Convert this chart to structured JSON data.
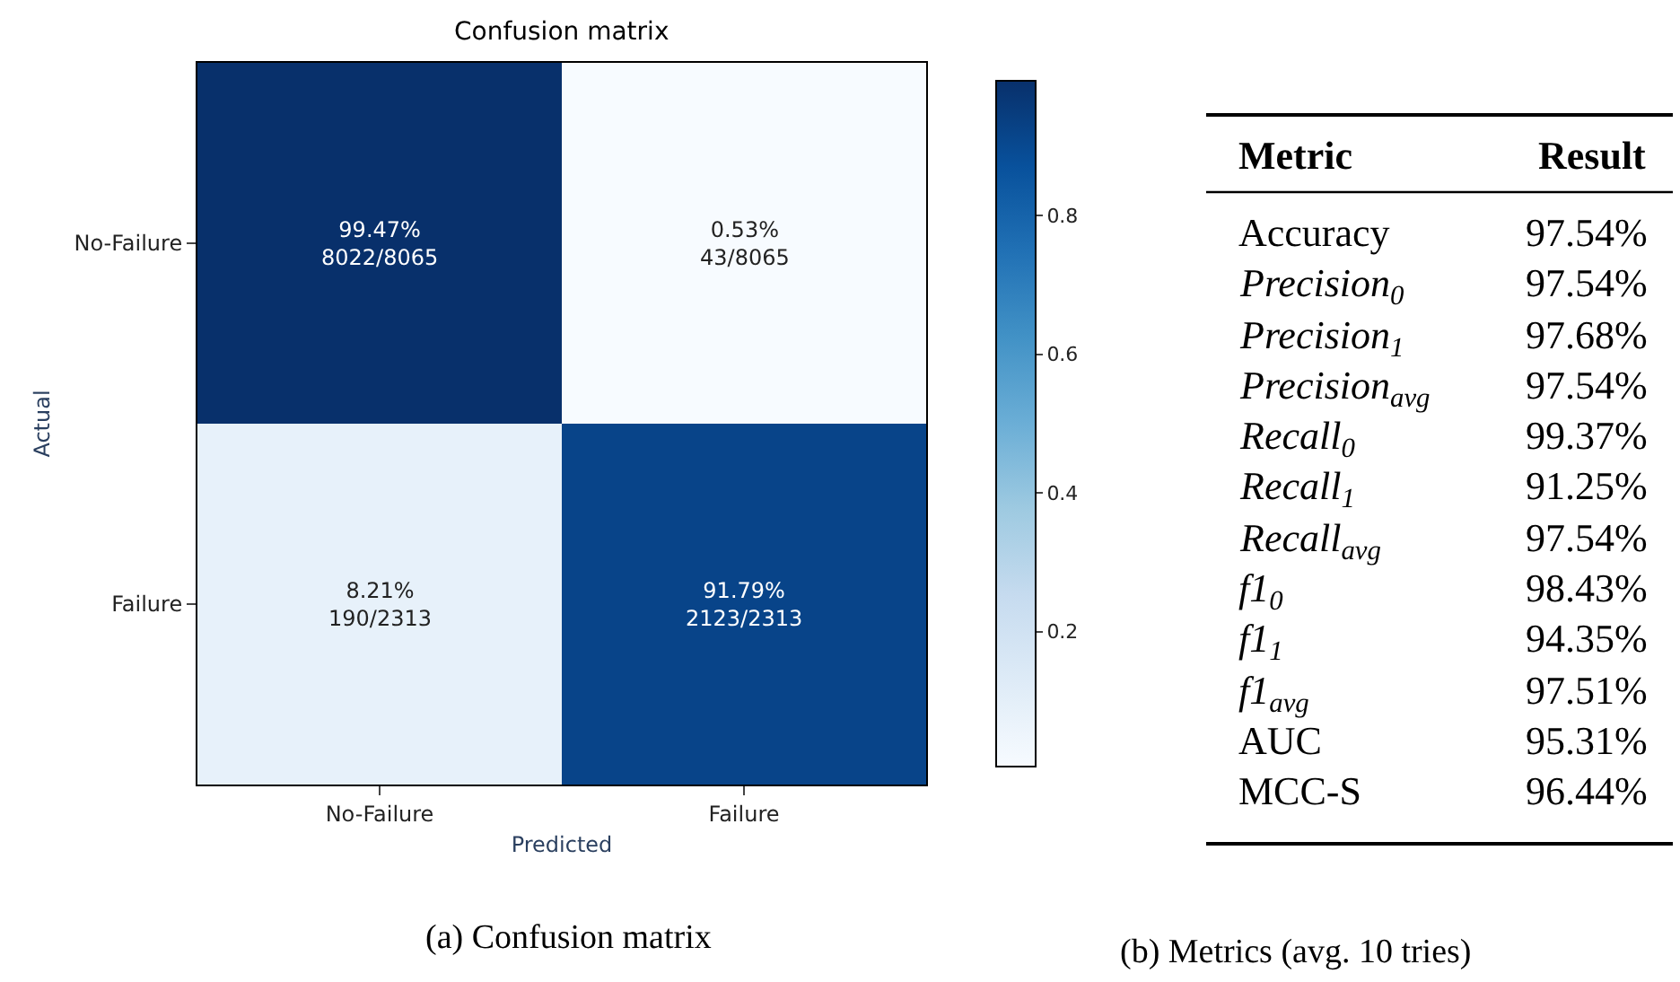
{
  "chart_data": [
    {
      "type": "heatmap",
      "title": "Confusion matrix",
      "xlabel": "Predicted",
      "ylabel": "Actual",
      "categories": [
        "No-Failure",
        "Failure"
      ],
      "y_categories": [
        "No-Failure",
        "Failure"
      ],
      "cells": [
        [
          0.9947,
          0.0053
        ],
        [
          0.0821,
          0.9179
        ]
      ],
      "cell_labels": [
        [
          "99.47%\n8022/8065",
          "0.53%\n43/8065"
        ],
        [
          "8.21%\n190/2313",
          "91.79%\n2123/2313"
        ]
      ],
      "clim": [
        0.0053,
        0.9947
      ],
      "cticks": [
        0.2,
        0.4,
        0.6,
        0.8
      ],
      "annotations": [
        "(a) Confusion matrix"
      ]
    },
    {
      "type": "other",
      "categories": [
        "Accuracy",
        "Precision$_{0}$",
        "Precision$_{1}$",
        "Precision$_{avg}$",
        "Recall$_{0}$",
        "Recall$_{1}$",
        "Recall$_{avg}$",
        "f1$_{0}$",
        "f1$_{1}$",
        "f1$_{avg}$",
        "AUC",
        "MCC-S"
      ],
      "value_labels": [
        "97.54%",
        "97.54%",
        "97.68%",
        "97.54%",
        "99.37%",
        "91.25%",
        "97.54%",
        "98.43%",
        "94.35%",
        "97.51%",
        "95.31%",
        "96.44%"
      ],
      "annotations": [
        "Metric",
        "Result",
        "(b) Metrics (avg. 10 tries)"
      ]
    }
  ]
}
